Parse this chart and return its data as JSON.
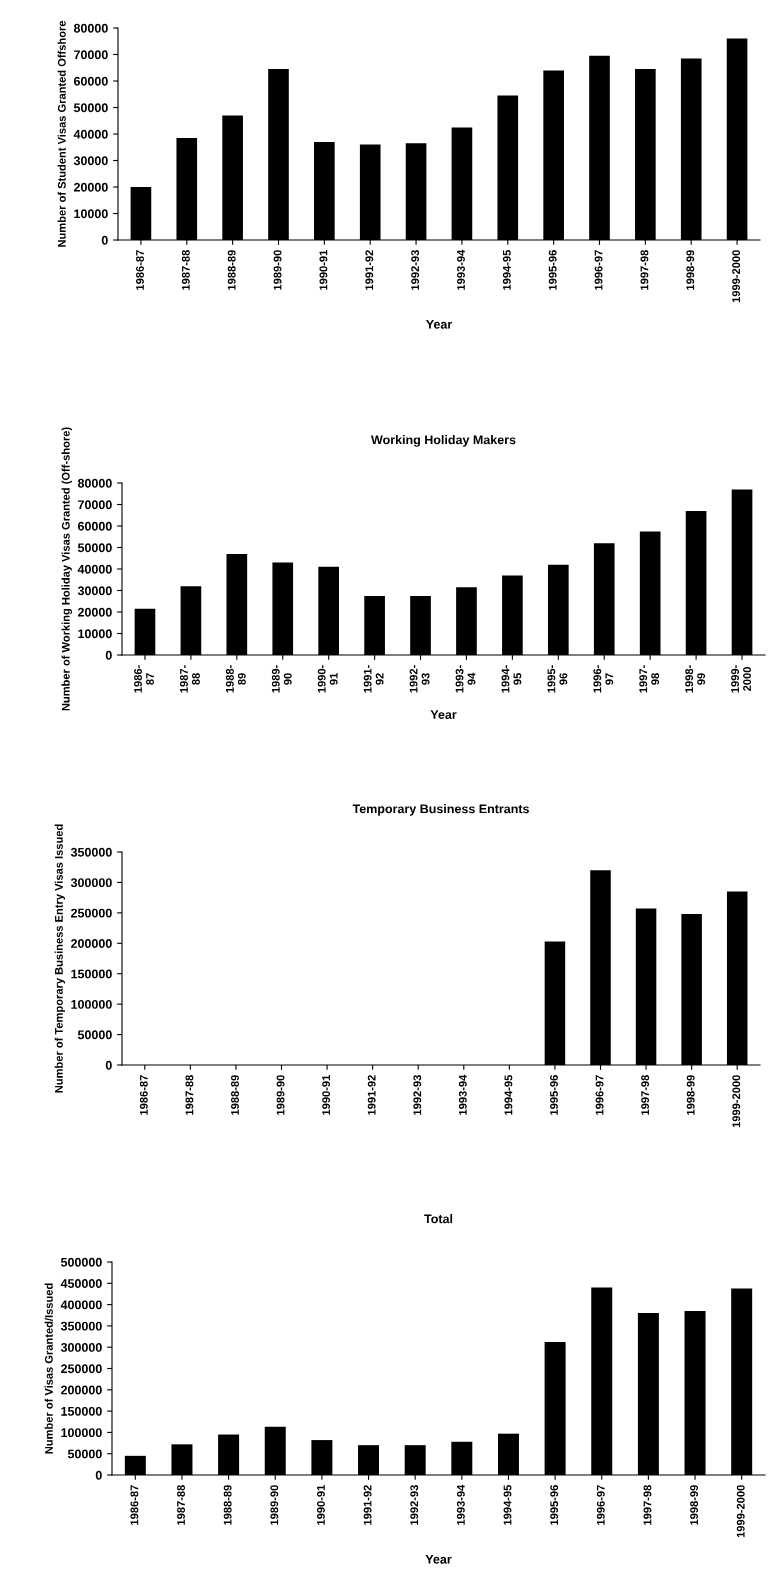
{
  "chart_data": [
    {
      "type": "bar",
      "ylabel": "Number of Student Visas Granted Offshore",
      "xlabel": "Year",
      "categories": [
        "1986-87",
        "1987-88",
        "1988-89",
        "1989-90",
        "1990-91",
        "1991-92",
        "1992-93",
        "1993-94",
        "1994-95",
        "1995-96",
        "1996-97",
        "1997-98",
        "1998-99",
        "1999-2000"
      ],
      "values": [
        20000,
        38500,
        47000,
        64500,
        37000,
        36000,
        36500,
        42500,
        54500,
        64000,
        69500,
        64500,
        68500,
        76000
      ],
      "color": "#000000",
      "ylim": [
        0,
        80000
      ],
      "yticks": [
        0,
        10000,
        20000,
        30000,
        40000,
        50000,
        60000,
        70000,
        80000
      ],
      "grid": false
    },
    {
      "type": "bar",
      "title": "Working Holiday Makers",
      "ylabel": "Number of Working Holiday Visas Granted (Off-shore)",
      "xlabel": "Year",
      "categories": [
        "1986-\n87",
        "1987-\n88",
        "1988-\n89",
        "1989-\n90",
        "1990-\n91",
        "1991-\n92",
        "1992-\n93",
        "1993-\n94",
        "1994-\n95",
        "1995-\n96",
        "1996-\n97",
        "1997-\n98",
        "1998-\n99",
        "1999-\n2000"
      ],
      "values": [
        21500,
        32000,
        47000,
        43000,
        41000,
        27500,
        27500,
        31500,
        37000,
        42000,
        52000,
        57500,
        67000,
        77000
      ],
      "color": "#000000",
      "ylim": [
        0,
        80000
      ],
      "yticks": [
        0,
        10000,
        20000,
        30000,
        40000,
        50000,
        60000,
        70000,
        80000
      ],
      "grid": false
    },
    {
      "type": "bar",
      "title": "Temporary Business Entrants",
      "ylabel": "Number of Temporary Business Entry Visas Issued",
      "categories": [
        "1986-87",
        "1987-88",
        "1988-89",
        "1989-90",
        "1990-91",
        "1991-92",
        "1992-93",
        "1993-94",
        "1994-95",
        "1995-96",
        "1996-97",
        "1997-98",
        "1998-99",
        "1999-2000"
      ],
      "values": [
        0,
        0,
        0,
        0,
        0,
        0,
        0,
        0,
        0,
        203000,
        320000,
        257000,
        248000,
        285000
      ],
      "color": "#000000",
      "ylim": [
        0,
        350000
      ],
      "yticks": [
        0,
        50000,
        100000,
        150000,
        200000,
        250000,
        300000,
        350000
      ],
      "grid": false
    },
    {
      "type": "bar",
      "title": "Total",
      "ylabel": "Number of Visas Granted/Issued",
      "xlabel": "Year",
      "categories": [
        "1986-87",
        "1987-88",
        "1988-89",
        "1989-90",
        "1990-91",
        "1991-92",
        "1992-93",
        "1993-94",
        "1994-95",
        "1995-96",
        "1996-97",
        "1997-98",
        "1998-99",
        "1999-2000"
      ],
      "values": [
        45000,
        72000,
        95000,
        113000,
        82000,
        70000,
        70000,
        78000,
        97000,
        312000,
        440000,
        380000,
        385000,
        438000
      ],
      "color": "#000000",
      "ylim": [
        0,
        500000
      ],
      "yticks": [
        0,
        50000,
        100000,
        150000,
        200000,
        250000,
        300000,
        350000,
        400000,
        450000,
        500000
      ],
      "grid": false
    }
  ]
}
